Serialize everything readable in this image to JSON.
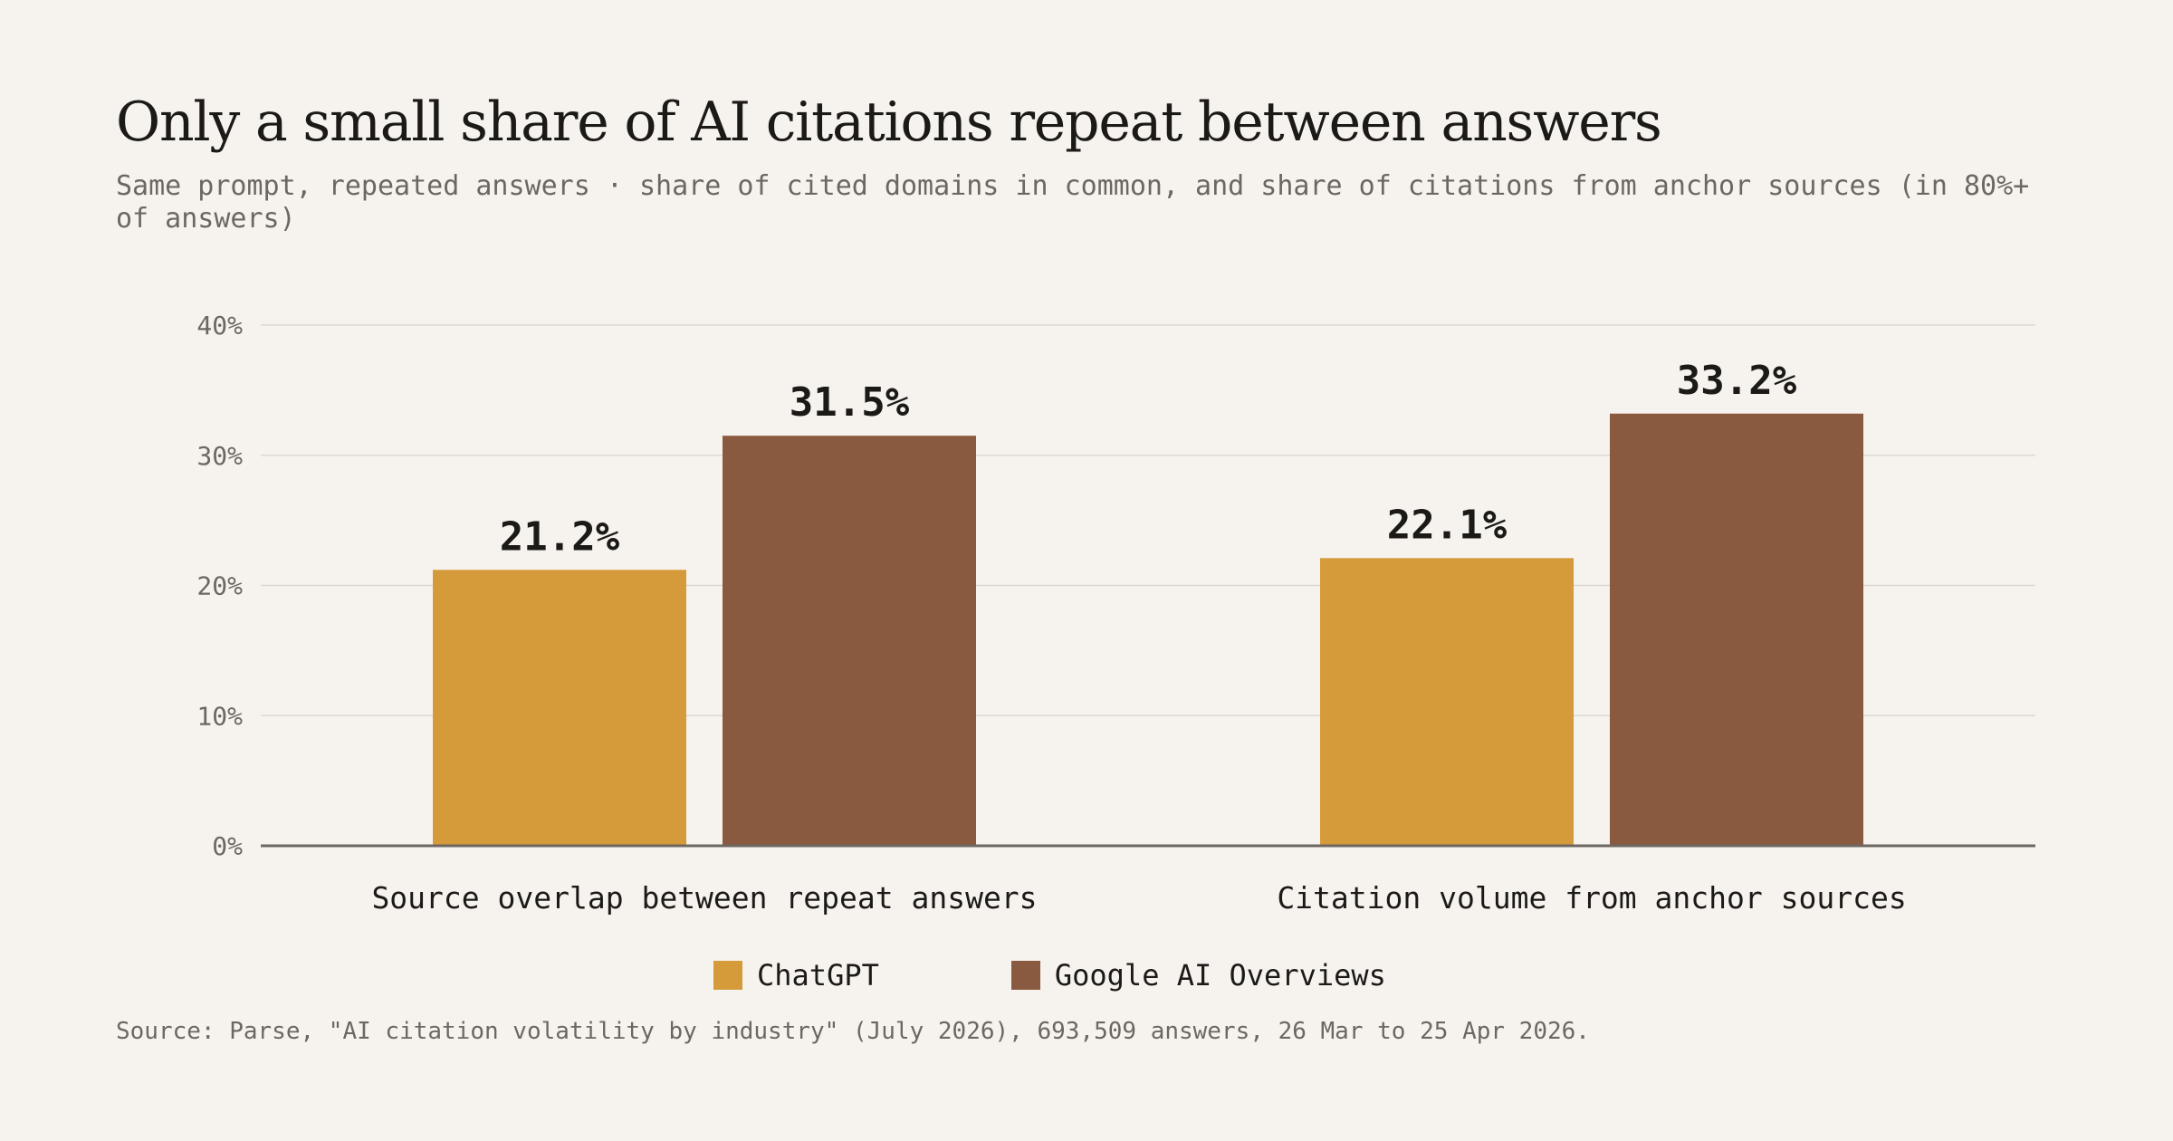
{
  "chart_data": {
    "type": "bar",
    "title": "Only a small share of AI citations repeat between answers",
    "subtitle": "Same prompt, repeated answers · share of cited domains in common, and share of citations from anchor sources (in 80%+ of answers)",
    "categories": [
      "Source overlap between repeat answers",
      "Citation volume from anchor sources"
    ],
    "series": [
      {
        "name": "ChatGPT",
        "values": [
          21.2,
          22.1
        ],
        "color": "#d59b3a"
      },
      {
        "name": "Google AI Overviews",
        "values": [
          31.5,
          33.2
        ],
        "color": "#8a5a40"
      }
    ],
    "data_labels": [
      [
        "21.2%",
        "22.1%"
      ],
      [
        "31.5%",
        "33.2%"
      ]
    ],
    "ylim": [
      0,
      40
    ],
    "yticks": [
      0,
      10,
      20,
      30,
      40
    ],
    "ytick_labels": [
      "0%",
      "10%",
      "20%",
      "30%",
      "40%"
    ],
    "grid": true,
    "legend_position": "bottom-center",
    "source": "Source: Parse, \"AI citation volatility by industry\" (July 2026), 693,509 answers, 26 Mar to 25 Apr 2026."
  }
}
